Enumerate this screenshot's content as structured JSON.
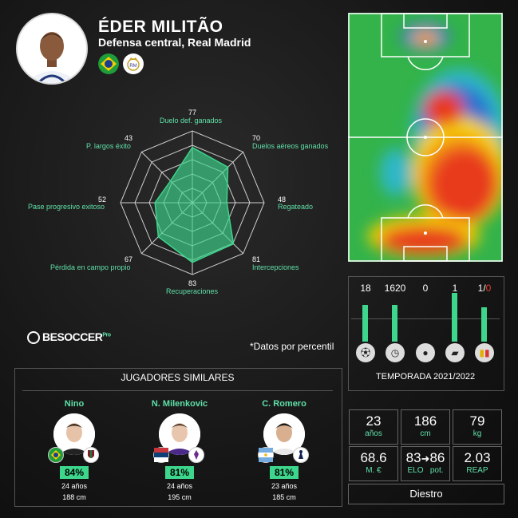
{
  "player": {
    "name": "ÉDER MILITÃO",
    "role": "Defensa central, Real Madrid",
    "country_flag": "brazil-flag",
    "club_logo": "real-madrid-logo"
  },
  "radar": {
    "accent": "#3dd68c",
    "metrics": [
      {
        "label": "Duelo def. ganados",
        "value": "77",
        "pct": 77
      },
      {
        "label": "Duelos aéreos ganados",
        "value": "70",
        "pct": 70
      },
      {
        "label": "Regateado",
        "value": "48",
        "pct": 48
      },
      {
        "label": "Intercepciones",
        "value": "81",
        "pct": 81
      },
      {
        "label": "Recuperaciones",
        "value": "83",
        "pct": 83
      },
      {
        "label": "Pérdida en campo propio",
        "value": "67",
        "pct": 67
      },
      {
        "label": "Pase progresivo exitoso",
        "value": "52",
        "pct": 52
      },
      {
        "label": "P. largos éxito",
        "value": "43",
        "pct": 43
      }
    ]
  },
  "season_stats": {
    "values": [
      "18",
      "1620",
      "0",
      "1"
    ],
    "cards_yellow": "1/",
    "cards_red": "0",
    "icons": [
      "player-kicking-icon",
      "clock-icon",
      "ball-icon",
      "boot-icon",
      "cards-icon"
    ],
    "season_label": "TEMPORADA 2021/2022",
    "bar_levels": [
      0.55,
      0.55,
      0.0,
      1.0,
      0.45
    ]
  },
  "branding": {
    "logo": "BESOCCER",
    "logo_badge": "Pro",
    "note": "*Datos por percentil"
  },
  "similar": {
    "title": "JUGADORES SIMILARES",
    "players": [
      {
        "name": "Nino",
        "pct": "84%",
        "age": "24 años",
        "height": "188 cm",
        "flag": "brazil-flag",
        "club": "fluminense-logo"
      },
      {
        "name": "N. Milenkovic",
        "pct": "81%",
        "age": "24 años",
        "height": "195 cm",
        "flag": "serbia-flag",
        "club": "fiorentina-logo"
      },
      {
        "name": "C. Romero",
        "pct": "81%",
        "age": "23 años",
        "height": "185 cm",
        "flag": "argentina-flag",
        "club": "tottenham-logo"
      }
    ]
  },
  "profile": {
    "age": {
      "value": "23",
      "label": "años"
    },
    "height": {
      "value": "186",
      "label": "cm"
    },
    "weight": {
      "value": "79",
      "label": "kg"
    },
    "market": {
      "value": "68.6",
      "label": "M. €"
    },
    "elo": {
      "value_a": "83",
      "arrow": "➜",
      "value_b": "86",
      "label_a": "ELO",
      "label_b": "pot."
    },
    "reap": {
      "value": "2.03",
      "label": "REAP"
    },
    "foot": "Diestro"
  }
}
